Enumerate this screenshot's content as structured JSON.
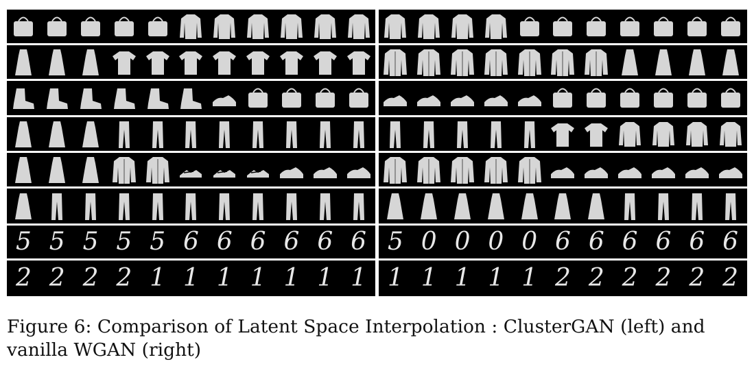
{
  "figure": {
    "panels": [
      {
        "id": "clustergan",
        "rows": [
          {
            "kind": "fashion",
            "items": [
              "bag",
              "bag",
              "bag",
              "bag",
              "bag",
              "pullover",
              "pullover",
              "pullover",
              "pullover",
              "pullover",
              "pullover"
            ]
          },
          {
            "kind": "fashion",
            "items": [
              "dress",
              "dress",
              "dress",
              "tshirt",
              "tshirt",
              "tshirt",
              "tshirt",
              "tshirt",
              "tshirt",
              "tshirt",
              "tshirt"
            ]
          },
          {
            "kind": "fashion",
            "items": [
              "boot",
              "boot",
              "boot",
              "boot",
              "boot",
              "boot",
              "sneaker",
              "bag",
              "bag",
              "bag",
              "bag"
            ]
          },
          {
            "kind": "fashion",
            "items": [
              "dress",
              "dress",
              "dress",
              "trouser",
              "trouser",
              "trouser",
              "trouser",
              "trouser",
              "trouser",
              "trouser",
              "trouser"
            ]
          },
          {
            "kind": "fashion",
            "items": [
              "dress",
              "dress",
              "dress",
              "coat",
              "coat",
              "sandal",
              "sandal",
              "sandal",
              "sneaker",
              "sneaker",
              "sneaker"
            ]
          },
          {
            "kind": "fashion",
            "items": [
              "dress",
              "trouser",
              "trouser",
              "trouser",
              "trouser",
              "trouser",
              "trouser",
              "trouser",
              "trouser",
              "trouser",
              "trouser"
            ]
          },
          {
            "kind": "digit",
            "items": [
              "5",
              "5",
              "5",
              "5",
              "5",
              "6",
              "6",
              "6",
              "6",
              "6",
              "6"
            ]
          },
          {
            "kind": "digit",
            "items": [
              "2",
              "2",
              "2",
              "2",
              "1",
              "1",
              "1",
              "1",
              "1",
              "1",
              "1"
            ]
          }
        ]
      },
      {
        "id": "wgan",
        "rows": [
          {
            "kind": "fashion",
            "items": [
              "pullover",
              "pullover",
              "pullover",
              "pullover",
              "bag",
              "bag",
              "bag",
              "bag",
              "bag",
              "bag",
              "bag"
            ]
          },
          {
            "kind": "fashion",
            "items": [
              "coat",
              "coat",
              "coat",
              "coat",
              "coat",
              "coat",
              "coat",
              "dress",
              "dress",
              "dress",
              "dress"
            ]
          },
          {
            "kind": "fashion",
            "items": [
              "sneaker",
              "sneaker",
              "sneaker",
              "sneaker",
              "sneaker",
              "bag",
              "bag",
              "bag",
              "bag",
              "bag",
              "bag"
            ]
          },
          {
            "kind": "fashion",
            "items": [
              "trouser",
              "trouser",
              "trouser",
              "trouser",
              "trouser",
              "tshirt",
              "tshirt",
              "pullover",
              "pullover",
              "pullover",
              "pullover"
            ]
          },
          {
            "kind": "fashion",
            "items": [
              "coat",
              "coat",
              "coat",
              "coat",
              "coat",
              "sneaker",
              "sneaker",
              "sneaker",
              "sneaker",
              "sneaker",
              "sneaker"
            ]
          },
          {
            "kind": "fashion",
            "items": [
              "dress",
              "dress",
              "dress",
              "dress",
              "dress",
              "dress",
              "dress",
              "trouser",
              "trouser",
              "trouser",
              "trouser"
            ]
          },
          {
            "kind": "digit",
            "items": [
              "5",
              "0",
              "0",
              "0",
              "0",
              "6",
              "6",
              "6",
              "6",
              "6",
              "6"
            ]
          },
          {
            "kind": "digit",
            "items": [
              "1",
              "1",
              "1",
              "1",
              "1",
              "2",
              "2",
              "2",
              "2",
              "2",
              "2"
            ]
          }
        ]
      }
    ],
    "colors": {
      "background": "#000000",
      "item": "#d6d6d6",
      "separator": "#ffffff"
    }
  },
  "caption": {
    "text": "Figure 6: Comparison of Latent Space Interpolation : ClusterGAN (left) and vanilla WGAN (right)"
  }
}
